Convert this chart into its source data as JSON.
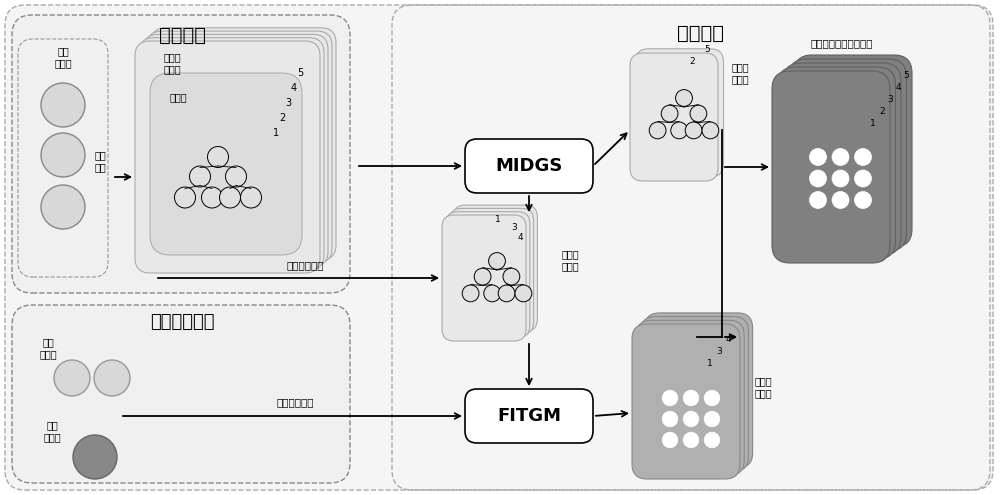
{
  "bg_color": "#ffffff",
  "light_fill": "#e8e8e8",
  "medium_fill": "#c8c8c8",
  "dark_fill": "#888888",
  "white_fill": "#ffffff",
  "text_color": "#000000",
  "title_moxing_jianshe": "模型构建",
  "title_moxing_gengxin": "模型更新",
  "title_zengliang_tezheng": "增量特征获取",
  "label_chushi_chuanganqi": "初始\n传感器",
  "label_xinzeng_chuanganqi": "新增\n传感器",
  "label_chushi_shuju": "初始\n数据",
  "label_jueceshu": "决策树",
  "label_xinwei_shibie_moxing": "行为识\n别模型",
  "label_midgs": "MIDGS",
  "label_fitgm": "FITGM",
  "label_wei_gengxin_jueceshu": "未更新\n决策树",
  "label_dai_gengxin_jueceshu": "待更新\n决策树",
  "label_gengxin_hou_jueceshu": "更新后\n决策树",
  "label_gengxin_hou_xinwei": "更新后的行为识别模型",
  "label_diyi_zengliang": "第一增量数据",
  "label_dier_zengliang": "第二增量数据"
}
